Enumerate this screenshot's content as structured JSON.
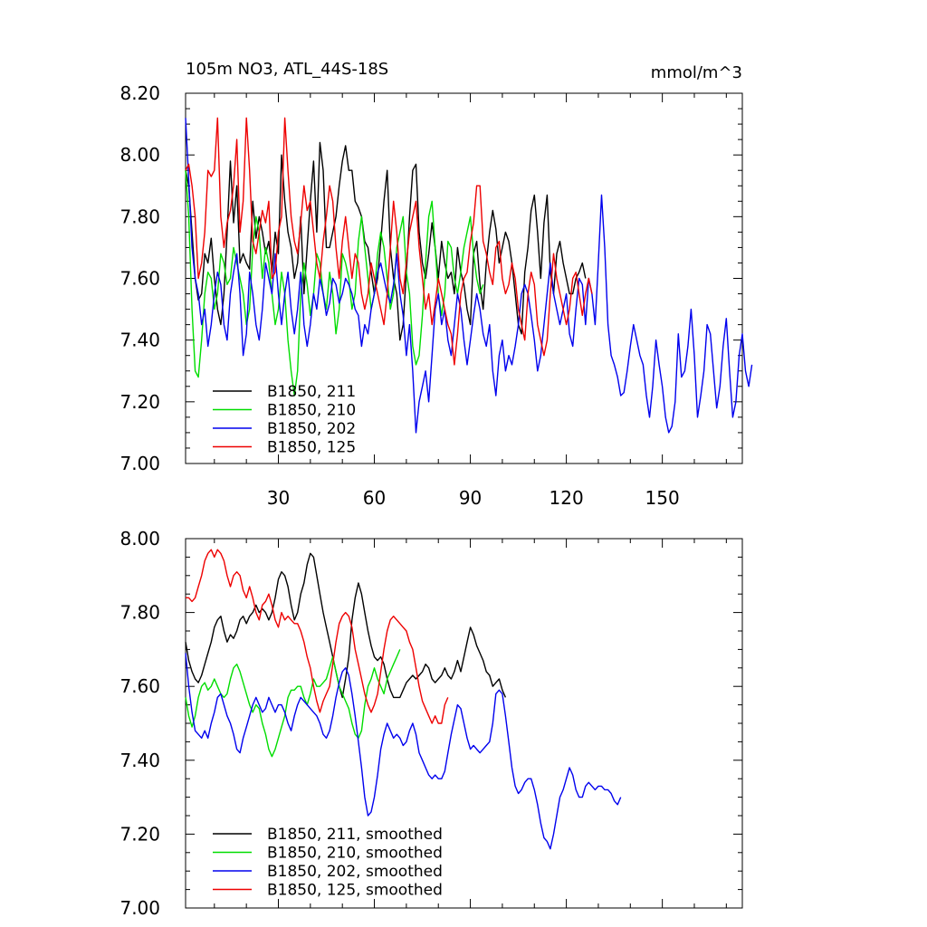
{
  "chart_data": [
    {
      "type": "line",
      "title": "105m NO3, ATL_44S-18S",
      "units": "mmol/m^3",
      "xlim": [
        1,
        175
      ],
      "ylim": [
        7.0,
        8.2
      ],
      "xticks": [
        30,
        60,
        90,
        120,
        150
      ],
      "yticks": [
        7.0,
        7.2,
        7.4,
        7.6,
        7.8,
        8.0,
        8.2
      ],
      "ytick_labels": [
        "7.00",
        "7.20",
        "7.40",
        "7.60",
        "7.80",
        "8.00",
        "8.20"
      ],
      "legend_position": "bottom-left",
      "series": [
        {
          "name": "B1850, 211",
          "color": "#000000",
          "x_start": 1,
          "values": [
            7.95,
            7.9,
            7.75,
            7.6,
            7.53,
            7.55,
            7.68,
            7.65,
            7.73,
            7.6,
            7.5,
            7.45,
            7.55,
            7.75,
            7.98,
            7.78,
            7.9,
            7.65,
            7.68,
            7.65,
            7.63,
            7.85,
            7.73,
            7.8,
            7.75,
            7.68,
            7.72,
            7.62,
            7.75,
            7.68,
            8.0,
            7.85,
            7.75,
            7.7,
            7.6,
            7.65,
            7.8,
            7.55,
            7.7,
            7.85,
            7.98,
            7.75,
            8.04,
            7.95,
            7.7,
            7.7,
            7.75,
            7.8,
            7.9,
            7.98,
            8.03,
            7.95,
            7.95,
            7.85,
            7.83,
            7.8,
            7.72,
            7.7,
            7.62,
            7.55,
            7.6,
            7.72,
            7.85,
            7.95,
            7.7,
            7.6,
            7.55,
            7.4,
            7.45,
            7.62,
            7.8,
            7.95,
            7.97,
            7.75,
            7.65,
            7.6,
            7.68,
            7.78,
            7.7,
            7.6,
            7.72,
            7.65,
            7.6,
            7.62,
            7.55,
            7.7,
            7.62,
            7.58,
            7.5,
            7.45,
            7.68,
            7.72,
            7.58,
            7.5,
            7.65,
            7.75,
            7.82,
            7.76,
            7.65,
            7.7,
            7.75,
            7.72,
            7.65,
            7.55,
            7.45,
            7.42,
            7.62,
            7.7,
            7.82,
            7.87,
            7.75,
            7.6,
            7.78,
            7.87,
            7.62,
            7.55,
            7.68,
            7.72,
            7.65,
            7.6,
            7.55,
            7.55,
            7.6,
            7.62,
            7.65,
            7.6
          ]
        },
        {
          "name": "B1850, 210",
          "color": "#00dd00",
          "x_start": 1,
          "values": [
            7.95,
            7.8,
            7.5,
            7.3,
            7.28,
            7.4,
            7.55,
            7.62,
            7.6,
            7.5,
            7.55,
            7.68,
            7.65,
            7.58,
            7.6,
            7.7,
            7.65,
            7.6,
            7.55,
            7.45,
            7.5,
            7.7,
            7.8,
            7.75,
            7.6,
            7.7,
            7.65,
            7.55,
            7.45,
            7.5,
            7.62,
            7.55,
            7.4,
            7.3,
            7.22,
            7.3,
            7.55,
            7.65,
            7.58,
            7.48,
            7.55,
            7.68,
            7.65,
            7.55,
            7.5,
            7.62,
            7.55,
            7.42,
            7.5,
            7.68,
            7.65,
            7.6,
            7.5,
            7.55,
            7.72,
            7.8,
            7.7,
            7.6,
            7.5,
            7.55,
            7.68,
            7.75,
            7.7,
            7.6,
            7.5,
            7.55,
            7.7,
            7.75,
            7.8,
            7.62,
            7.55,
            7.38,
            7.32,
            7.35,
            7.48,
            7.65,
            7.8,
            7.85,
            7.7,
            7.55,
            7.48,
            7.55,
            7.72,
            7.7,
            7.6,
            7.55,
            7.62,
            7.7,
            7.75,
            7.8,
            7.68,
            7.6,
            7.55,
            7.58
          ]
        },
        {
          "name": "B1850, 202",
          "color": "#0000ee",
          "x_start": 1,
          "values": [
            8.12,
            7.92,
            7.7,
            7.6,
            7.55,
            7.45,
            7.5,
            7.38,
            7.45,
            7.55,
            7.62,
            7.58,
            7.45,
            7.4,
            7.55,
            7.62,
            7.68,
            7.55,
            7.35,
            7.42,
            7.62,
            7.55,
            7.45,
            7.4,
            7.5,
            7.65,
            7.6,
            7.55,
            7.68,
            7.55,
            7.45,
            7.55,
            7.62,
            7.5,
            7.42,
            7.5,
            7.62,
            7.45,
            7.38,
            7.45,
            7.55,
            7.5,
            7.6,
            7.55,
            7.48,
            7.52,
            7.6,
            7.58,
            7.52,
            7.55,
            7.6,
            7.58,
            7.55,
            7.5,
            7.48,
            7.38,
            7.45,
            7.42,
            7.5,
            7.55,
            7.62,
            7.65,
            7.6,
            7.55,
            7.52,
            7.58,
            7.68,
            7.55,
            7.48,
            7.35,
            7.45,
            7.3,
            7.1,
            7.2,
            7.25,
            7.3,
            7.2,
            7.35,
            7.5,
            7.55,
            7.45,
            7.5,
            7.4,
            7.35,
            7.45,
            7.55,
            7.5,
            7.4,
            7.32,
            7.4,
            7.48,
            7.55,
            7.5,
            7.42,
            7.38,
            7.45,
            7.3,
            7.22,
            7.35,
            7.4,
            7.3,
            7.35,
            7.32,
            7.38,
            7.45,
            7.55,
            7.58,
            7.55,
            7.48,
            7.4,
            7.3,
            7.35,
            7.45,
            7.55,
            7.65,
            7.55,
            7.5,
            7.45,
            7.5,
            7.55,
            7.42,
            7.38,
            7.5,
            7.6,
            7.58,
            7.45,
            7.6,
            7.55,
            7.45,
            7.65,
            7.87,
            7.7,
            7.45,
            7.35,
            7.32,
            7.28,
            7.22,
            7.23,
            7.3,
            7.38,
            7.45,
            7.4,
            7.35,
            7.32,
            7.22,
            7.15,
            7.25,
            7.4,
            7.32,
            7.25,
            7.15,
            7.1,
            7.12,
            7.2,
            7.42,
            7.28,
            7.3,
            7.38,
            7.5,
            7.35,
            7.15,
            7.22,
            7.3,
            7.45,
            7.42,
            7.3,
            7.18,
            7.25,
            7.38,
            7.47,
            7.3,
            7.15,
            7.2,
            7.35,
            7.42,
            7.3,
            7.25,
            7.32
          ]
        },
        {
          "name": "B1850, 125",
          "color": "#ee0000",
          "x_start": 1,
          "values": [
            7.95,
            7.97,
            7.9,
            7.8,
            7.6,
            7.65,
            7.75,
            7.95,
            7.93,
            7.95,
            8.12,
            7.8,
            7.7,
            7.78,
            7.82,
            7.9,
            8.05,
            7.75,
            7.85,
            8.12,
            7.95,
            7.72,
            7.68,
            7.75,
            7.82,
            7.78,
            7.85,
            7.6,
            7.62,
            7.75,
            7.8,
            8.12,
            7.95,
            7.8,
            7.72,
            7.68,
            7.78,
            7.9,
            7.82,
            7.85,
            7.75,
            7.65,
            7.6,
            7.72,
            7.8,
            7.9,
            7.85,
            7.7,
            7.6,
            7.72,
            7.8,
            7.7,
            7.6,
            7.68,
            7.65,
            7.55,
            7.5,
            7.55,
            7.65,
            7.6,
            7.55,
            7.5,
            7.45,
            7.55,
            7.7,
            7.85,
            7.75,
            7.6,
            7.55,
            7.65,
            7.75,
            7.8,
            7.85,
            7.7,
            7.6,
            7.5,
            7.55,
            7.45,
            7.52,
            7.6,
            7.55,
            7.5,
            7.45,
            7.42,
            7.32,
            7.42,
            7.55,
            7.6,
            7.62,
            7.72,
            7.78,
            7.9,
            7.9,
            7.72,
            7.68,
            7.62,
            7.58,
            7.7,
            7.72,
            7.6,
            7.55,
            7.58,
            7.65,
            7.6,
            7.5,
            7.45,
            7.4,
            7.55,
            7.62,
            7.58,
            7.45,
            7.4,
            7.35,
            7.4,
            7.55,
            7.68,
            7.6,
            7.55,
            7.5,
            7.45,
            7.5,
            7.6,
            7.62,
            7.55,
            7.48,
            7.55,
            7.6,
            7.55
          ]
        }
      ]
    },
    {
      "type": "line",
      "xlim": [
        1,
        175
      ],
      "ylim": [
        7.0,
        8.0
      ],
      "xticks": [
        30,
        60,
        90,
        120,
        150
      ],
      "yticks": [
        7.0,
        7.2,
        7.4,
        7.6,
        7.8,
        8.0
      ],
      "ytick_labels": [
        "7.00",
        "7.20",
        "7.40",
        "7.60",
        "7.80",
        "8.00"
      ],
      "legend_position": "bottom-left",
      "series": [
        {
          "name": "B1850, 211, smoothed",
          "color": "#000000",
          "x_start": 1,
          "values": [
            7.72,
            7.67,
            7.64,
            7.62,
            7.61,
            7.63,
            7.66,
            7.69,
            7.72,
            7.76,
            7.78,
            7.79,
            7.75,
            7.72,
            7.74,
            7.73,
            7.75,
            7.78,
            7.79,
            7.77,
            7.79,
            7.8,
            7.82,
            7.8,
            7.81,
            7.8,
            7.78,
            7.8,
            7.84,
            7.89,
            7.91,
            7.9,
            7.87,
            7.82,
            7.78,
            7.8,
            7.85,
            7.88,
            7.93,
            7.96,
            7.95,
            7.9,
            7.85,
            7.8,
            7.76,
            7.72,
            7.68,
            7.64,
            7.6,
            7.57,
            7.62,
            7.68,
            7.78,
            7.84,
            7.88,
            7.85,
            7.8,
            7.75,
            7.71,
            7.68,
            7.67,
            7.68,
            7.66,
            7.62,
            7.59,
            7.57,
            7.57,
            7.57,
            7.59,
            7.61,
            7.62,
            7.63,
            7.62,
            7.63,
            7.64,
            7.66,
            7.65,
            7.62,
            7.61,
            7.62,
            7.63,
            7.65,
            7.63,
            7.62,
            7.64,
            7.67,
            7.64,
            7.68,
            7.72,
            7.76,
            7.74,
            7.71,
            7.69,
            7.67,
            7.64,
            7.63,
            7.6,
            7.61,
            7.62,
            7.59,
            7.57
          ]
        },
        {
          "name": "B1850, 210, smoothed",
          "color": "#00dd00",
          "x_start": 1,
          "values": [
            7.57,
            7.52,
            7.49,
            7.52,
            7.57,
            7.6,
            7.61,
            7.59,
            7.6,
            7.62,
            7.6,
            7.58,
            7.57,
            7.58,
            7.62,
            7.65,
            7.66,
            7.64,
            7.61,
            7.58,
            7.55,
            7.53,
            7.55,
            7.54,
            7.5,
            7.47,
            7.43,
            7.41,
            7.43,
            7.46,
            7.49,
            7.52,
            7.57,
            7.59,
            7.59,
            7.6,
            7.6,
            7.57,
            7.55,
            7.58,
            7.62,
            7.6,
            7.6,
            7.61,
            7.62,
            7.65,
            7.68,
            7.64,
            7.6,
            7.58,
            7.56,
            7.54,
            7.5,
            7.47,
            7.46,
            7.48,
            7.55,
            7.6,
            7.62,
            7.65,
            7.62,
            7.6,
            7.58,
            7.62,
            7.64,
            7.66,
            7.68,
            7.7
          ]
        },
        {
          "name": "B1850, 202, smoothed",
          "color": "#0000ee",
          "x_start": 1,
          "values": [
            7.69,
            7.6,
            7.53,
            7.48,
            7.47,
            7.46,
            7.48,
            7.46,
            7.5,
            7.53,
            7.57,
            7.58,
            7.55,
            7.52,
            7.5,
            7.47,
            7.43,
            7.42,
            7.46,
            7.49,
            7.52,
            7.55,
            7.57,
            7.55,
            7.53,
            7.54,
            7.57,
            7.55,
            7.53,
            7.55,
            7.55,
            7.53,
            7.5,
            7.48,
            7.52,
            7.55,
            7.57,
            7.56,
            7.55,
            7.54,
            7.53,
            7.52,
            7.5,
            7.47,
            7.46,
            7.48,
            7.52,
            7.57,
            7.61,
            7.64,
            7.65,
            7.63,
            7.58,
            7.52,
            7.45,
            7.38,
            7.3,
            7.25,
            7.26,
            7.3,
            7.36,
            7.43,
            7.47,
            7.5,
            7.48,
            7.46,
            7.47,
            7.46,
            7.44,
            7.45,
            7.48,
            7.5,
            7.47,
            7.42,
            7.4,
            7.38,
            7.36,
            7.35,
            7.36,
            7.35,
            7.35,
            7.37,
            7.42,
            7.47,
            7.51,
            7.55,
            7.54,
            7.5,
            7.46,
            7.43,
            7.44,
            7.43,
            7.42,
            7.43,
            7.44,
            7.45,
            7.5,
            7.58,
            7.59,
            7.58,
            7.52,
            7.45,
            7.38,
            7.33,
            7.31,
            7.32,
            7.34,
            7.35,
            7.35,
            7.32,
            7.28,
            7.23,
            7.19,
            7.18,
            7.16,
            7.2,
            7.25,
            7.3,
            7.32,
            7.35,
            7.38,
            7.36,
            7.32,
            7.3,
            7.3,
            7.33,
            7.34,
            7.33,
            7.32,
            7.33,
            7.33,
            7.32,
            7.32,
            7.31,
            7.29,
            7.28,
            7.3
          ]
        },
        {
          "name": "B1850, 125, smoothed",
          "color": "#ee0000",
          "x_start": 1,
          "values": [
            7.84,
            7.84,
            7.83,
            7.84,
            7.87,
            7.9,
            7.94,
            7.96,
            7.97,
            7.95,
            7.97,
            7.96,
            7.94,
            7.9,
            7.87,
            7.9,
            7.91,
            7.9,
            7.86,
            7.84,
            7.87,
            7.84,
            7.8,
            7.78,
            7.82,
            7.83,
            7.85,
            7.82,
            7.78,
            7.76,
            7.8,
            7.78,
            7.79,
            7.78,
            7.77,
            7.77,
            7.75,
            7.72,
            7.68,
            7.65,
            7.6,
            7.56,
            7.53,
            7.56,
            7.58,
            7.6,
            7.66,
            7.72,
            7.77,
            7.79,
            7.8,
            7.79,
            7.76,
            7.7,
            7.66,
            7.62,
            7.58,
            7.55,
            7.53,
            7.55,
            7.58,
            7.64,
            7.7,
            7.75,
            7.78,
            7.79,
            7.78,
            7.77,
            7.76,
            7.75,
            7.72,
            7.7,
            7.65,
            7.6,
            7.56,
            7.54,
            7.52,
            7.5,
            7.52,
            7.5,
            7.5,
            7.55,
            7.57
          ]
        }
      ]
    }
  ]
}
